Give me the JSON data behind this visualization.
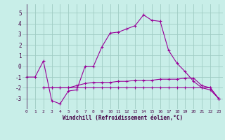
{
  "xlabel": "Windchill (Refroidissement éolien,°C)",
  "line_color": "#990099",
  "bg_color": "#c8eee8",
  "grid_color": "#a0ccc4",
  "line1_x": [
    0,
    1,
    2,
    3,
    4,
    5,
    6,
    7,
    8,
    9,
    10,
    11,
    12,
    13,
    14,
    15,
    16,
    17,
    18,
    19,
    20,
    21,
    22,
    23
  ],
  "line1_y": [
    -1.0,
    -1.0,
    0.5,
    -3.2,
    -3.5,
    -2.3,
    -2.2,
    0.0,
    0.0,
    1.8,
    3.1,
    3.2,
    3.5,
    3.8,
    4.8,
    4.3,
    4.2,
    1.5,
    0.3,
    -0.5,
    -1.4,
    -2.0,
    -2.2,
    -3.0
  ],
  "line2_x": [
    2,
    3,
    4,
    5,
    6,
    7,
    8,
    9,
    10,
    11,
    12,
    13,
    14,
    15,
    16,
    17,
    18,
    19,
    20,
    21,
    22,
    23
  ],
  "line2_y": [
    -2.0,
    -2.0,
    -2.0,
    -2.0,
    -1.8,
    -1.6,
    -1.5,
    -1.5,
    -1.5,
    -1.4,
    -1.4,
    -1.3,
    -1.3,
    -1.3,
    -1.2,
    -1.2,
    -1.2,
    -1.1,
    -1.1,
    -1.8,
    -2.0,
    -3.0
  ],
  "line3_x": [
    2,
    3,
    4,
    5,
    6,
    7,
    8,
    9,
    10,
    11,
    12,
    13,
    14,
    15,
    16,
    17,
    18,
    19,
    20,
    21,
    22,
    23
  ],
  "line3_y": [
    -2.0,
    -2.0,
    -2.0,
    -2.0,
    -2.0,
    -2.0,
    -2.0,
    -2.0,
    -2.0,
    -2.0,
    -2.0,
    -2.0,
    -2.0,
    -2.0,
    -2.0,
    -2.0,
    -2.0,
    -2.0,
    -2.0,
    -2.0,
    -2.0,
    -3.0
  ],
  "ylim": [
    -4.0,
    5.8
  ],
  "xlim": [
    -0.5,
    23.5
  ],
  "yticks": [
    -3,
    -2,
    -1,
    0,
    1,
    2,
    3,
    4,
    5
  ],
  "xticks": [
    0,
    1,
    2,
    3,
    4,
    5,
    6,
    7,
    8,
    9,
    10,
    11,
    12,
    13,
    14,
    15,
    16,
    17,
    18,
    19,
    20,
    21,
    22,
    23
  ]
}
